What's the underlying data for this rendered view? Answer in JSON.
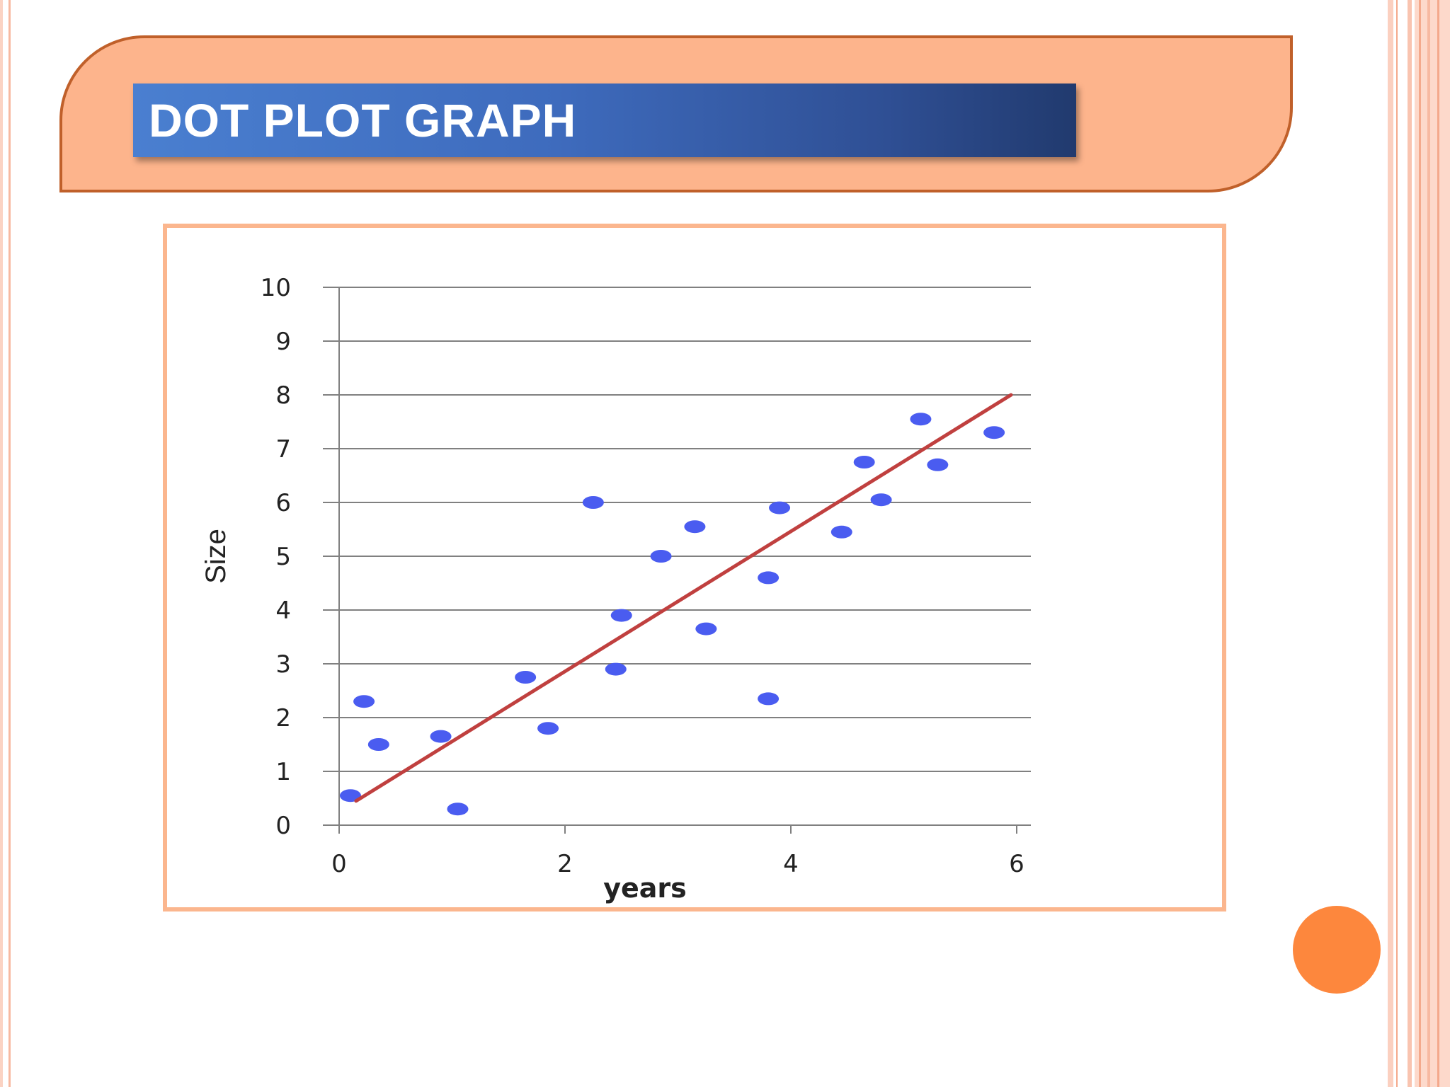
{
  "title": "DOT PLOT GRAPH",
  "colors": {
    "banner": "#fdb48c",
    "banner_border": "#c0602a",
    "title_bar": "#3e6bbd",
    "frame": "#fbb68e",
    "points": "#4a5cf0",
    "trend_line": "#c0403f",
    "grid": "#808080",
    "accent_circle": "#fd873d"
  },
  "chart_data": {
    "type": "scatter",
    "xlabel": "years",
    "ylabel": "Size",
    "xlim": [
      0,
      6
    ],
    "ylim": [
      0,
      10
    ],
    "x_ticks": [
      "0",
      "2",
      "4",
      "6"
    ],
    "y_ticks": [
      "0",
      "1",
      "2",
      "3",
      "4",
      "5",
      "6",
      "7",
      "8",
      "9",
      "10"
    ],
    "grid": "horizontal",
    "points": [
      {
        "x": 0.1,
        "y": 0.55
      },
      {
        "x": 0.22,
        "y": 2.3
      },
      {
        "x": 0.35,
        "y": 1.5
      },
      {
        "x": 0.9,
        "y": 1.65
      },
      {
        "x": 1.05,
        "y": 0.3
      },
      {
        "x": 1.65,
        "y": 2.75
      },
      {
        "x": 1.85,
        "y": 1.8
      },
      {
        "x": 2.25,
        "y": 6.0
      },
      {
        "x": 2.45,
        "y": 2.9
      },
      {
        "x": 2.5,
        "y": 3.9
      },
      {
        "x": 2.85,
        "y": 5.0
      },
      {
        "x": 3.15,
        "y": 5.55
      },
      {
        "x": 3.25,
        "y": 3.65
      },
      {
        "x": 3.8,
        "y": 2.35
      },
      {
        "x": 3.8,
        "y": 4.6
      },
      {
        "x": 3.9,
        "y": 5.9
      },
      {
        "x": 4.45,
        "y": 5.45
      },
      {
        "x": 4.65,
        "y": 6.75
      },
      {
        "x": 4.8,
        "y": 6.05
      },
      {
        "x": 5.15,
        "y": 7.55
      },
      {
        "x": 5.3,
        "y": 6.7
      },
      {
        "x": 5.8,
        "y": 7.3
      }
    ],
    "trend_line": {
      "x": [
        0.15,
        5.95
      ],
      "y": [
        0.45,
        8.0
      ]
    }
  }
}
